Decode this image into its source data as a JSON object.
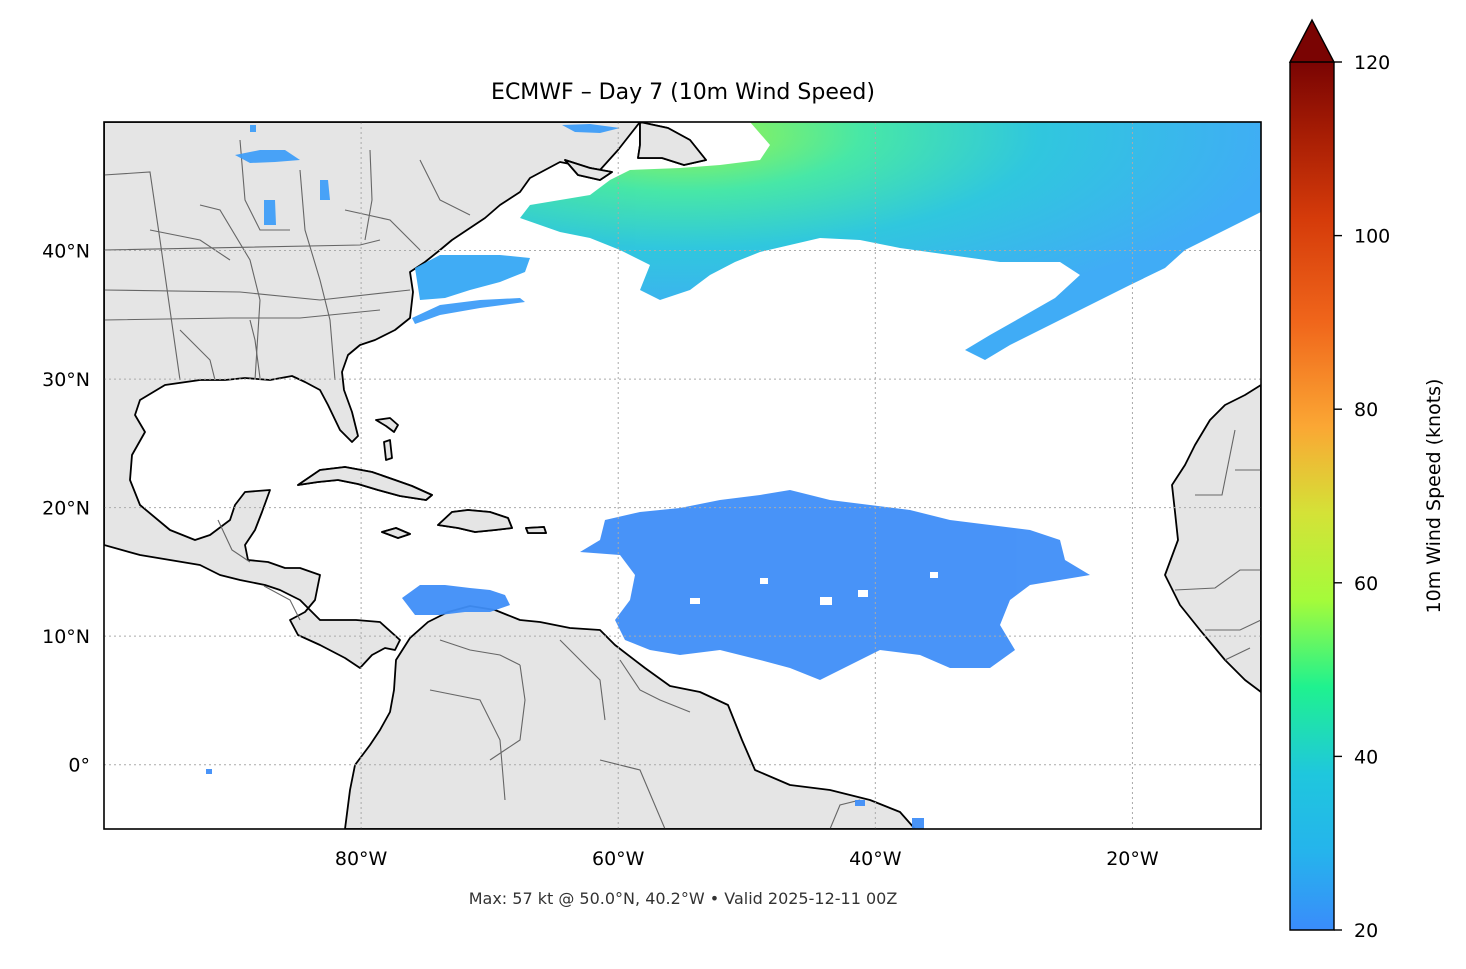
{
  "title": "ECMWF – Day 7 (10m Wind Speed)",
  "footer": "Max: 57 kt @ 50.0°N, 40.2°W • Valid 2025-12-11 00Z",
  "map": {
    "projection": "plate-carree",
    "lon_range": [
      -100,
      -10
    ],
    "lat_range": [
      -5,
      50
    ],
    "gridlines": true,
    "land_color": "#e5e5e5",
    "ocean_color": "#ffffff",
    "lon_ticks": [
      {
        "value": -80,
        "label": "80°W"
      },
      {
        "value": -60,
        "label": "60°W"
      },
      {
        "value": -40,
        "label": "40°W"
      },
      {
        "value": -20,
        "label": "20°W"
      }
    ],
    "lat_ticks": [
      {
        "value": 40,
        "label": "40°N"
      },
      {
        "value": 30,
        "label": "30°N"
      },
      {
        "value": 20,
        "label": "20°N"
      },
      {
        "value": 10,
        "label": "10°N"
      },
      {
        "value": 0,
        "label": "0°"
      }
    ]
  },
  "colorbar": {
    "label": "10m Wind Speed (knots)",
    "range": [
      20,
      120
    ],
    "extend": "max",
    "ticks": [
      {
        "value": 120,
        "label": "120"
      },
      {
        "value": 100,
        "label": "100"
      },
      {
        "value": 80,
        "label": "80"
      },
      {
        "value": 60,
        "label": "60"
      },
      {
        "value": 40,
        "label": "40"
      },
      {
        "value": 20,
        "label": "20"
      }
    ],
    "colors": [
      "#3a8cfb",
      "#1fc7dd",
      "#1ff28f",
      "#a5fb3a",
      "#e2d838",
      "#fba734",
      "#f0661b",
      "#c82905",
      "#7a0403"
    ]
  },
  "wind_regions": [
    {
      "name": "north-atlantic-jet",
      "color": "#36a8f5"
    },
    {
      "name": "max-wind-core",
      "color": "#9af53a"
    },
    {
      "name": "trade-winds",
      "color": "#3f8ef8"
    },
    {
      "name": "caribbean-jet",
      "color": "#3f8ef8"
    }
  ]
}
